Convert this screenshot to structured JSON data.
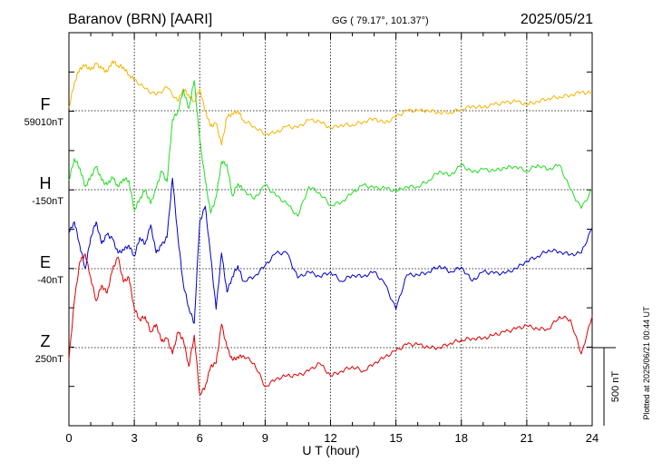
{
  "header": {
    "station": "Baranov (BRN)  [AARI]",
    "coords": "GG ( 79.17°, 101.37°)",
    "date": "2025/05/21"
  },
  "footer_note": "Plotted at 2025/06/21 00:44 UT",
  "chart_data": {
    "type": "line",
    "xlabel": "U T (hour)",
    "xlim": [
      0,
      24
    ],
    "x_ticks": [
      0,
      3,
      6,
      9,
      12,
      15,
      18,
      21,
      24
    ],
    "x_tick_labels": [
      "0",
      "3",
      "6",
      "9",
      "12",
      "15",
      "18",
      "21",
      "24"
    ],
    "y_unit": "nT",
    "grid": true,
    "scale_bar": {
      "label": "500 nT",
      "value_nT": 500
    },
    "series": [
      {
        "name": "F",
        "baseline_label": "59010nT",
        "baseline_nT": 59010,
        "color": "#f5b400",
        "x": [
          0,
          0.25,
          0.5,
          0.75,
          1,
          1.25,
          1.5,
          1.75,
          2,
          2.25,
          2.5,
          2.75,
          3,
          3.5,
          4,
          4.5,
          5,
          5.25,
          5.5,
          5.75,
          6,
          6.25,
          6.5,
          6.75,
          7,
          7.25,
          7.5,
          7.75,
          8,
          8.5,
          9,
          9.5,
          10,
          10.5,
          11,
          11.5,
          12,
          12.5,
          13,
          13.5,
          14,
          14.5,
          15,
          15.5,
          16,
          16.5,
          17,
          17.5,
          18,
          18.5,
          19,
          19.5,
          20,
          20.5,
          21,
          21.5,
          22,
          22.5,
          23,
          23.5,
          24
        ],
        "values": [
          20,
          180,
          270,
          290,
          260,
          300,
          270,
          250,
          320,
          290,
          280,
          230,
          200,
          140,
          100,
          150,
          60,
          140,
          100,
          60,
          140,
          0,
          -100,
          -80,
          -220,
          -40,
          -20,
          0,
          -60,
          -100,
          -150,
          -140,
          -100,
          -110,
          -60,
          -70,
          -110,
          -90,
          -90,
          -70,
          -50,
          -80,
          -40,
          0,
          0,
          0,
          -10,
          -10,
          10,
          30,
          20,
          40,
          50,
          60,
          40,
          60,
          80,
          90,
          100,
          120,
          110
        ]
      },
      {
        "name": "H",
        "baseline_label": "-150nT",
        "baseline_nT": -150,
        "color": "#22dd22",
        "x": [
          0,
          0.25,
          0.5,
          0.75,
          1,
          1.25,
          1.5,
          1.75,
          2,
          2.25,
          2.5,
          2.75,
          3,
          3.25,
          3.5,
          3.75,
          4,
          4.25,
          4.5,
          4.75,
          5,
          5.25,
          5.5,
          5.75,
          6,
          6.25,
          6.5,
          6.75,
          7,
          7.25,
          7.5,
          7.75,
          8,
          8.5,
          9,
          9.5,
          10,
          10.5,
          11,
          11.5,
          12,
          12.5,
          13,
          13.5,
          14,
          14.5,
          15,
          15.5,
          16,
          16.5,
          17,
          17.5,
          18,
          18.5,
          19,
          19.5,
          20,
          20.5,
          21,
          21.5,
          22,
          22.5,
          23,
          23.5,
          24
        ],
        "values": [
          60,
          200,
          140,
          20,
          80,
          150,
          60,
          30,
          80,
          20,
          70,
          60,
          -130,
          -60,
          0,
          -90,
          10,
          120,
          50,
          450,
          500,
          640,
          520,
          700,
          320,
          60,
          -150,
          -50,
          180,
          160,
          -40,
          40,
          0,
          -60,
          30,
          -40,
          -90,
          -170,
          20,
          -20,
          -100,
          -80,
          -20,
          30,
          10,
          10,
          -10,
          20,
          20,
          60,
          120,
          90,
          160,
          110,
          130,
          120,
          140,
          150,
          120,
          160,
          130,
          160,
          0,
          -120,
          0
        ]
      },
      {
        "name": "E",
        "baseline_label": "-40nT",
        "baseline_nT": -40,
        "color": "#0000cc",
        "x": [
          0,
          0.25,
          0.5,
          0.75,
          1,
          1.25,
          1.5,
          1.75,
          2,
          2.25,
          2.5,
          2.75,
          3,
          3.25,
          3.5,
          3.75,
          4,
          4.25,
          4.5,
          4.75,
          5,
          5.25,
          5.5,
          5.75,
          6,
          6.25,
          6.5,
          6.75,
          7,
          7.25,
          7.5,
          7.75,
          8,
          8.5,
          9,
          9.5,
          10,
          10.5,
          11,
          11.5,
          12,
          12.5,
          13,
          13.5,
          14,
          14.5,
          15,
          15.5,
          16,
          16.5,
          17,
          17.5,
          18,
          18.5,
          19,
          19.5,
          20,
          20.5,
          21,
          21.5,
          22,
          22.5,
          23,
          23.5,
          24
        ],
        "values": [
          230,
          300,
          150,
          0,
          200,
          300,
          160,
          220,
          190,
          100,
          120,
          150,
          80,
          200,
          160,
          280,
          100,
          150,
          200,
          580,
          200,
          -100,
          -250,
          -350,
          300,
          400,
          80,
          -260,
          100,
          -150,
          -50,
          20,
          -80,
          -50,
          20,
          100,
          100,
          -60,
          -20,
          -50,
          -20,
          -80,
          -40,
          -50,
          -20,
          -100,
          -260,
          -40,
          -40,
          -20,
          20,
          -20,
          10,
          -80,
          -20,
          -30,
          -30,
          0,
          50,
          80,
          120,
          110,
          90,
          100,
          260
        ]
      },
      {
        "name": "Z",
        "baseline_label": "250nT",
        "baseline_nT": 250,
        "color": "#dd0000",
        "x": [
          0,
          0.25,
          0.5,
          0.75,
          1,
          1.25,
          1.5,
          1.75,
          2,
          2.25,
          2.5,
          2.75,
          3,
          3.25,
          3.5,
          3.75,
          4,
          4.25,
          4.5,
          4.75,
          5,
          5.25,
          5.5,
          5.75,
          6,
          6.25,
          6.5,
          6.75,
          7,
          7.25,
          7.5,
          7.75,
          8,
          8.5,
          9,
          9.5,
          10,
          10.5,
          11,
          11.5,
          12,
          12.5,
          13,
          13.5,
          14,
          14.5,
          15,
          15.5,
          16,
          16.5,
          17,
          17.5,
          18,
          18.5,
          19,
          19.5,
          20,
          20.5,
          21,
          21.5,
          22,
          22.5,
          23,
          23.5,
          24
        ],
        "values": [
          -80,
          300,
          550,
          600,
          450,
          300,
          400,
          350,
          500,
          580,
          420,
          450,
          250,
          180,
          200,
          100,
          150,
          40,
          60,
          -40,
          100,
          50,
          -120,
          80,
          -300,
          -250,
          -120,
          -100,
          150,
          0,
          -80,
          -60,
          -50,
          -100,
          -250,
          -200,
          -180,
          -180,
          -150,
          -100,
          -180,
          -150,
          -120,
          -150,
          -100,
          -60,
          -20,
          20,
          20,
          0,
          0,
          30,
          50,
          60,
          60,
          80,
          100,
          120,
          140,
          120,
          120,
          200,
          180,
          -40,
          200
        ]
      }
    ]
  }
}
